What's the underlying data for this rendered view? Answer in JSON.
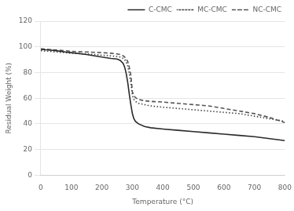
{
  "chart_data": {
    "type": "line",
    "xlabel": "Temperature (°C)",
    "ylabel": "Residual Weight (%)",
    "x": [
      0,
      25,
      50,
      80,
      100,
      150,
      200,
      230,
      250,
      260,
      270,
      275,
      280,
      285,
      290,
      295,
      300,
      305,
      310,
      320,
      340,
      360,
      400,
      450,
      500,
      550,
      600,
      650,
      700,
      750,
      800
    ],
    "series": [
      {
        "name": "C-CMC",
        "color": "#2a2a2a",
        "line_style": "solid",
        "values": [
          98,
          97.5,
          97,
          96,
          95.5,
          94,
          92,
          91,
          90.5,
          89.5,
          87,
          84,
          79,
          72,
          63,
          55,
          48,
          44,
          42,
          40,
          38,
          37,
          36,
          35,
          34,
          33,
          32,
          31,
          30,
          28.5,
          27
        ]
      },
      {
        "name": "MC-CMC",
        "color": "#444444",
        "line_style": "dotted",
        "values": [
          97,
          96.5,
          96,
          95.5,
          95,
          94.5,
          93.5,
          93,
          92.5,
          92,
          91,
          90,
          88,
          85,
          79,
          72,
          62,
          59,
          57.5,
          56,
          55,
          54,
          53,
          52,
          51,
          50,
          49,
          48,
          46,
          44,
          42
        ]
      },
      {
        "name": "NC-CMC",
        "color": "#555555",
        "line_style": "dashed",
        "values": [
          98.5,
          98,
          97.5,
          97,
          96.5,
          96,
          95.5,
          95,
          94.5,
          94,
          93,
          92,
          90.5,
          88.5,
          84,
          78,
          65,
          62,
          60.5,
          59,
          58,
          57.5,
          57,
          56,
          55,
          54,
          52,
          50,
          48,
          45,
          41
        ]
      }
    ],
    "xlim": [
      0,
      800
    ],
    "ylim": [
      0,
      120
    ],
    "xticks": [
      0,
      100,
      200,
      300,
      400,
      500,
      600,
      700,
      800
    ],
    "yticks": [
      0,
      20,
      40,
      60,
      80,
      100,
      120
    ],
    "grid": "y",
    "legend": "upper right"
  }
}
